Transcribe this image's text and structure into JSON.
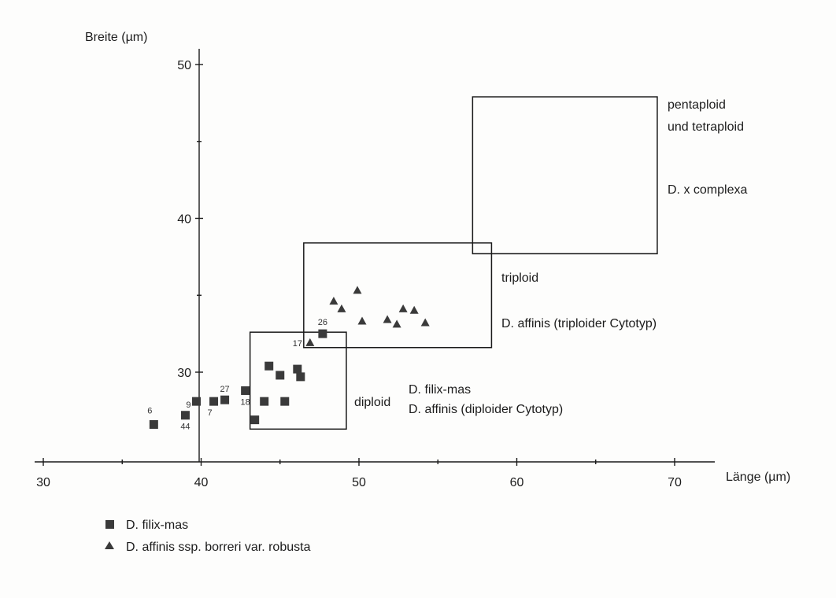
{
  "chart_data": {
    "type": "scatter",
    "xlabel": "Länge (µm)",
    "ylabel": "Breite (µm)",
    "xlim": [
      30,
      72.5
    ],
    "ylim": [
      25.6,
      51.5
    ],
    "x_ticks": [
      30,
      40,
      50,
      60,
      70
    ],
    "y_ticks": [
      30,
      40,
      50
    ],
    "x_minor_ticks": [
      35,
      45,
      55,
      65
    ],
    "y_minor_ticks": [
      35,
      45
    ],
    "grid": false,
    "legend_position": "bottom-left",
    "series": [
      {
        "name": "D. filix-mas",
        "marker": "square",
        "color": "#3a3a3a",
        "points": [
          {
            "x": 37.0,
            "y": 26.6,
            "label": "6"
          },
          {
            "x": 39.0,
            "y": 27.2,
            "label": "44"
          },
          {
            "x": 39.7,
            "y": 28.1,
            "label": "9"
          },
          {
            "x": 40.8,
            "y": 28.1,
            "label": "7"
          },
          {
            "x": 41.5,
            "y": 28.2,
            "label": "27"
          },
          {
            "x": 42.8,
            "y": 28.8,
            "label": "18"
          },
          {
            "x": 43.4,
            "y": 26.9,
            "label": ""
          },
          {
            "x": 44.0,
            "y": 28.1,
            "label": ""
          },
          {
            "x": 44.3,
            "y": 30.4,
            "label": ""
          },
          {
            "x": 45.0,
            "y": 29.8,
            "label": ""
          },
          {
            "x": 45.3,
            "y": 28.1,
            "label": ""
          },
          {
            "x": 46.1,
            "y": 30.2,
            "label": ""
          },
          {
            "x": 46.3,
            "y": 29.7,
            "label": ""
          },
          {
            "x": 47.7,
            "y": 32.5,
            "label": "26"
          }
        ]
      },
      {
        "name": "D. affinis ssp. borreri var. robusta",
        "marker": "triangle",
        "color": "#3a3a3a",
        "points": [
          {
            "x": 46.9,
            "y": 31.9,
            "label": "17"
          },
          {
            "x": 48.4,
            "y": 34.6,
            "label": ""
          },
          {
            "x": 48.9,
            "y": 34.1,
            "label": ""
          },
          {
            "x": 49.9,
            "y": 35.3,
            "label": ""
          },
          {
            "x": 50.2,
            "y": 33.3,
            "label": ""
          },
          {
            "x": 51.8,
            "y": 33.4,
            "label": ""
          },
          {
            "x": 52.4,
            "y": 33.1,
            "label": ""
          },
          {
            "x": 52.8,
            "y": 34.1,
            "label": ""
          },
          {
            "x": 53.5,
            "y": 34.0,
            "label": ""
          },
          {
            "x": 54.2,
            "y": 33.2,
            "label": ""
          }
        ]
      }
    ],
    "regions": [
      {
        "x0": 43.1,
        "x1": 49.2,
        "y0": 26.3,
        "y1": 32.6,
        "labels": [
          "diploid",
          "D. filix-mas",
          "D. affinis (diploider Cytotyp)"
        ]
      },
      {
        "x0": 46.5,
        "x1": 58.4,
        "y0": 31.6,
        "y1": 38.4,
        "labels": [
          "triploid",
          "D. affinis (triploider Cytotyp)"
        ]
      },
      {
        "x0": 57.2,
        "x1": 68.9,
        "y0": 37.7,
        "y1": 47.9,
        "labels": [
          "pentaploid und tetraploid",
          "D. x complexa"
        ]
      }
    ]
  },
  "legend": {
    "items": [
      {
        "marker": "square",
        "label": "D. filix-mas"
      },
      {
        "marker": "triangle",
        "label": "D. affinis ssp. borreri var. robusta"
      }
    ]
  }
}
